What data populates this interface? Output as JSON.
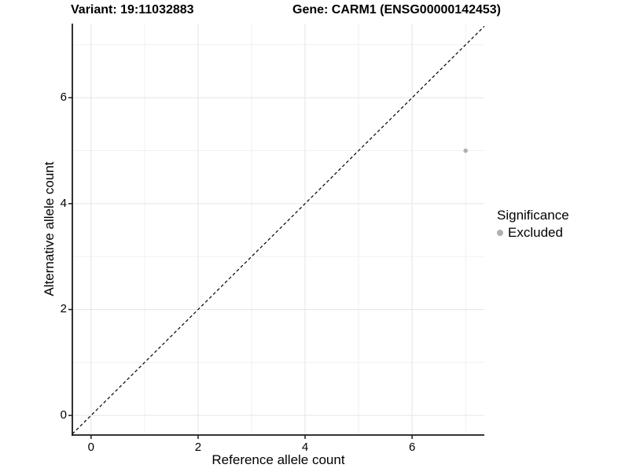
{
  "titles": {
    "variant": "Variant: 19:11032883",
    "gene": "Gene: CARM1 (ENSG00000142453)"
  },
  "legend": {
    "title": "Significance",
    "items": [
      {
        "label": "Excluded",
        "color": "#b0b0b0"
      }
    ]
  },
  "chart_data": {
    "type": "scatter",
    "title": "Variant: 19:11032883 — Gene: CARM1 (ENSG00000142453)",
    "xlabel": "Reference allele count",
    "ylabel": "Alternative allele count",
    "xlim": [
      -0.35,
      7.35
    ],
    "ylim": [
      -0.37,
      7.4
    ],
    "x_ticks": [
      0,
      2,
      4,
      6
    ],
    "y_ticks": [
      0,
      2,
      4,
      6
    ],
    "x_minor_gridlines": [
      1,
      3,
      5,
      7
    ],
    "y_minor_gridlines": [
      1,
      3,
      5,
      7
    ],
    "grid": true,
    "legend_position": "right",
    "series": [
      {
        "name": "Excluded",
        "color": "#b0b0b0",
        "points": [
          {
            "x": 7,
            "y": 5
          }
        ]
      }
    ],
    "reference_line": {
      "kind": "identity y=x",
      "style": "dashed",
      "color": "#000000"
    }
  },
  "colors": {
    "background": "#ffffff",
    "grid_major": "#e5e5e5",
    "grid_minor": "#f0f0f0",
    "axis_line": "#1a1a1a",
    "text": "#000000",
    "point": "#b0b0b0"
  }
}
